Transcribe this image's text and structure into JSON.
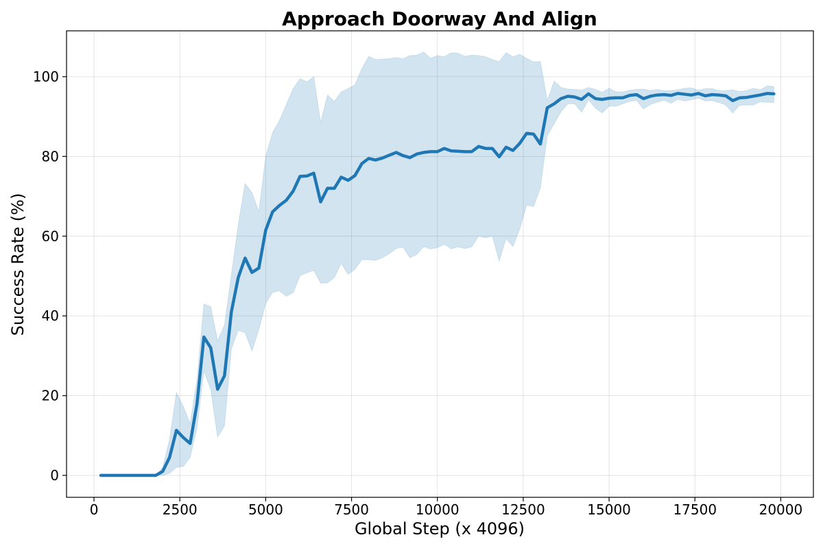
{
  "chart_data": {
    "type": "line",
    "title": "Approach Doorway And Align",
    "xlabel": "Global Step (x 4096)",
    "ylabel": "Success Rate (%)",
    "xlim": [
      -800,
      20950
    ],
    "ylim": [
      -5.5,
      111.5
    ],
    "xticks": [
      0,
      2500,
      5000,
      7500,
      10000,
      12500,
      15000,
      17500,
      20000
    ],
    "xtick_labels": [
      "0",
      "2500",
      "5000",
      "7500",
      "10000",
      "12500",
      "15000",
      "17500",
      "20000"
    ],
    "yticks": [
      0,
      20,
      40,
      60,
      80,
      100
    ],
    "ytick_labels": [
      "0",
      "20",
      "40",
      "60",
      "80",
      "100"
    ],
    "grid": true,
    "colors": {
      "line": "#1f77b4",
      "band": "#1f77b4"
    },
    "series": [
      {
        "x": [
          200,
          400,
          600,
          800,
          1000,
          1200,
          1400,
          1600,
          1800,
          2000,
          2200,
          2400,
          2600,
          2800,
          3000,
          3200,
          3400,
          3600,
          3800,
          4000,
          4200,
          4400,
          4600,
          4800,
          5000,
          5200,
          5400,
          5600,
          5800,
          6000,
          6200,
          6400,
          6600,
          6800,
          7000,
          7200,
          7400,
          7600,
          7800,
          8000,
          8200,
          8400,
          8600,
          8800,
          9000,
          9200,
          9400,
          9600,
          9800,
          10000,
          10200,
          10400,
          10600,
          10800,
          11000,
          11200,
          11400,
          11600,
          11800,
          12000,
          12200,
          12400,
          12600,
          12800,
          13000,
          13200,
          13400,
          13600,
          13800,
          14000,
          14200,
          14400,
          14600,
          14800,
          15000,
          15200,
          15400,
          15600,
          15800,
          16000,
          16200,
          16400,
          16600,
          16800,
          17000,
          17200,
          17400,
          17600,
          17800,
          18000,
          18200,
          18400,
          18600,
          18800,
          19000,
          19200,
          19400,
          19600,
          19800
        ],
        "mean": [
          0,
          0,
          0,
          0,
          0,
          0,
          0,
          0,
          0,
          1,
          4.5,
          11.3,
          9.5,
          8,
          18,
          34.7,
          32,
          21.6,
          25,
          41,
          49.6,
          54.5,
          50.9,
          52,
          61.5,
          66.1,
          67.7,
          69,
          71.3,
          75,
          75.1,
          75.8,
          68.6,
          72,
          72,
          74.8,
          74,
          75.2,
          78.2,
          79.5,
          79.1,
          79.6,
          80.3,
          81,
          80.2,
          79.7,
          80.6,
          81,
          81.2,
          81.2,
          82,
          81.4,
          81.3,
          81.2,
          81.2,
          82.5,
          82,
          82,
          79.9,
          82.3,
          81.5,
          83.3,
          85.8,
          85.6,
          83.1,
          92.2,
          93.2,
          94.5,
          95.1,
          94.9,
          94.3,
          95.7,
          94.5,
          94.3,
          94.6,
          94.7,
          94.7,
          95.3,
          95.5,
          94.5,
          95.1,
          95.4,
          95.5,
          95.3,
          95.8,
          95.6,
          95.4,
          95.8,
          95.2,
          95.5,
          95.4,
          95.2,
          94,
          94.7,
          94.8,
          95.1,
          95.4,
          95.8,
          95.7
        ],
        "upper": [
          0,
          0,
          0,
          0,
          0,
          0,
          0,
          0,
          0,
          2,
          9,
          20.8,
          17.3,
          13,
          24,
          43,
          42.3,
          33.8,
          37.7,
          50.3,
          62.8,
          73.2,
          70.9,
          66.2,
          80,
          86,
          89,
          93,
          97,
          99.5,
          98.7,
          100,
          88.5,
          95.4,
          93.8,
          96.2,
          97,
          98,
          102,
          105.1,
          104.3,
          104.4,
          104.5,
          104.8,
          104.5,
          105.3,
          105.4,
          106.2,
          104.6,
          105.3,
          105,
          106,
          105.9,
          105.1,
          105.4,
          105.3,
          105,
          104.3,
          103.8,
          106,
          105,
          105.6,
          104.6,
          103.7,
          103.8,
          94,
          98.9,
          97.3,
          96.9,
          96.8,
          96.6,
          97.3,
          96.8,
          96.1,
          97.1,
          96.2,
          96.2,
          96.6,
          96.8,
          96.9,
          96.5,
          96.8,
          96.5,
          96.5,
          96.7,
          97.1,
          97.2,
          96.6,
          97,
          97,
          96.5,
          96.5,
          96.7,
          96.3,
          96.5,
          97.1,
          96.7,
          97.7,
          97.5
        ],
        "lower": [
          0,
          0,
          0,
          0,
          0,
          0,
          0,
          0,
          0,
          0,
          0.5,
          2,
          2.2,
          4.5,
          12,
          26.2,
          21.5,
          9.6,
          12.4,
          31.7,
          36.4,
          35.8,
          31.2,
          36.5,
          43.1,
          45.9,
          46.3,
          44.9,
          45.8,
          50.1,
          50.8,
          51.4,
          48.2,
          48.3,
          49.6,
          53.2,
          50.4,
          51.7,
          54.1,
          54.1,
          53.9,
          54.6,
          55.6,
          56.9,
          57.2,
          54.6,
          55.4,
          57.4,
          56.8,
          57.1,
          58,
          56.8,
          57.3,
          56.9,
          57.3,
          60,
          59.6,
          60,
          53.8,
          59.4,
          57.4,
          61.8,
          67.8,
          67.4,
          72.1,
          85.2,
          88.2,
          91.2,
          93.2,
          93.2,
          91.1,
          94.2,
          92.1,
          90.9,
          92.6,
          92.6,
          93.2,
          93.8,
          94.1,
          91.9,
          93,
          93.6,
          94.1,
          93.3,
          94.3,
          93.9,
          94.2,
          94.6,
          93.9,
          94,
          93.5,
          92.9,
          90.9,
          92.8,
          92.9,
          92.9,
          93.7,
          93.6,
          93.5
        ]
      }
    ]
  }
}
